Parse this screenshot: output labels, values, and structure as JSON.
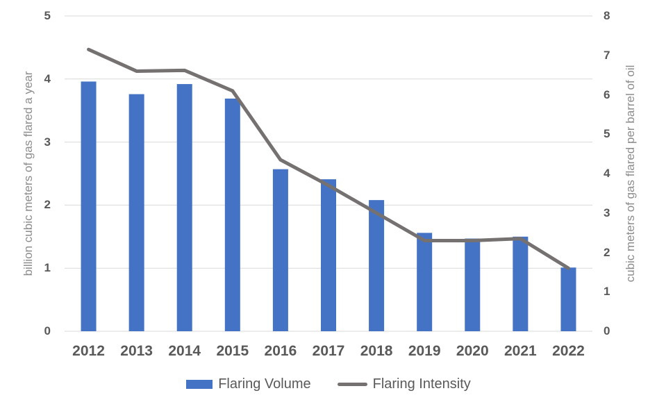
{
  "chart_data": {
    "type": "bar+line combo",
    "categories": [
      "2012",
      "2013",
      "2014",
      "2015",
      "2016",
      "2017",
      "2018",
      "2019",
      "2020",
      "2021",
      "2022"
    ],
    "series": [
      {
        "name": "Flaring Volume",
        "type": "bar",
        "axis": "left",
        "color": "#4472C4",
        "values": [
          3.96,
          3.76,
          3.92,
          3.69,
          2.57,
          2.41,
          2.08,
          1.56,
          1.47,
          1.5,
          1.01
        ]
      },
      {
        "name": "Flaring Intensity",
        "type": "line",
        "axis": "right",
        "color": "#767171",
        "values": [
          7.15,
          6.6,
          6.62,
          6.1,
          4.35,
          3.7,
          3.0,
          2.3,
          2.3,
          2.35,
          1.6
        ]
      }
    ],
    "ylabel_left": "billion cubic meters of gas flared a year",
    "ylabel_right": "cubic meters of gas flared per barrel of oil",
    "ylim_left": [
      0,
      5
    ],
    "ylim_right": [
      0,
      8
    ],
    "left_ticks": [
      0,
      1,
      2,
      3,
      4,
      5
    ],
    "right_ticks": [
      0,
      1,
      2,
      3,
      4,
      5,
      6,
      7,
      8
    ],
    "grid": true,
    "gridline_color": "#d9d9d9",
    "legend_position": "bottom"
  }
}
